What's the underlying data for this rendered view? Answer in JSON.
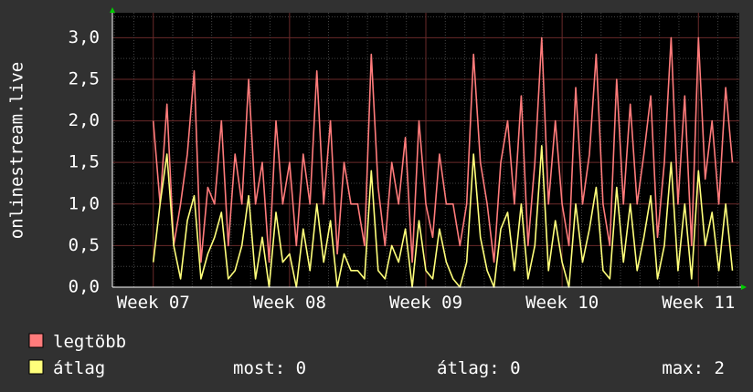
{
  "chart_data": {
    "type": "line",
    "ylabel": "onlinestream.live",
    "ylim": [
      0,
      3.3
    ],
    "yticks": [
      0,
      0.5,
      1.0,
      1.5,
      2.0,
      2.5,
      3.0
    ],
    "ytick_labels": [
      "0,0",
      "0,5",
      "1,0",
      "1,5",
      "2,0",
      "2,5",
      "3,0"
    ],
    "x": [
      0.0,
      0.05,
      0.1,
      0.15,
      0.2,
      0.25,
      0.3,
      0.35,
      0.4,
      0.45,
      0.5,
      0.55,
      0.6,
      0.65,
      0.7,
      0.75,
      0.8,
      0.85,
      0.9,
      0.95,
      1.0,
      1.05,
      1.1,
      1.15,
      1.2,
      1.25,
      1.3,
      1.35,
      1.4,
      1.45,
      1.5,
      1.55,
      1.6,
      1.65,
      1.7,
      1.75,
      1.8,
      1.85,
      1.9,
      1.95,
      2.0,
      2.05,
      2.1,
      2.15,
      2.2,
      2.25,
      2.3,
      2.35,
      2.4,
      2.45,
      2.5,
      2.55,
      2.6,
      2.65,
      2.7,
      2.75,
      2.8,
      2.85,
      2.9,
      2.95,
      3.0,
      3.05,
      3.1,
      3.15,
      3.2,
      3.25,
      3.3,
      3.35,
      3.4,
      3.45,
      3.5,
      3.55,
      3.6,
      3.65,
      3.7,
      3.75,
      3.8,
      3.85,
      3.9,
      3.95,
      4.0,
      4.05,
      4.1,
      4.15,
      4.2,
      4.25
    ],
    "xlim": [
      -0.3,
      4.3
    ],
    "xticks": [
      0,
      1,
      2,
      3,
      4
    ],
    "xtick_labels": [
      "Week 07",
      "Week 08",
      "Week 09",
      "Week 10",
      "Week 11"
    ],
    "series": [
      {
        "name": "legtöbb",
        "color": "#ff7b7b",
        "values": [
          2.0,
          1.0,
          2.2,
          0.5,
          1.0,
          1.6,
          2.6,
          0.3,
          1.2,
          1.0,
          2.0,
          0.5,
          1.6,
          1.0,
          2.5,
          1.0,
          1.5,
          0.3,
          2.0,
          1.0,
          1.5,
          0.5,
          1.6,
          1.0,
          2.6,
          1.0,
          2.0,
          0.4,
          1.5,
          1.0,
          1.0,
          0.5,
          2.8,
          1.2,
          0.5,
          1.5,
          1.0,
          1.8,
          0.3,
          2.0,
          1.0,
          0.6,
          1.6,
          1.0,
          1.0,
          0.5,
          1.0,
          2.8,
          1.5,
          1.0,
          0.3,
          1.5,
          2.0,
          1.0,
          2.3,
          0.5,
          1.5,
          3.0,
          1.0,
          2.0,
          1.0,
          0.5,
          2.4,
          1.0,
          1.6,
          2.8,
          1.0,
          0.5,
          2.5,
          1.0,
          2.2,
          1.0,
          1.6,
          2.3,
          0.6,
          1.5,
          3.0,
          1.0,
          2.3,
          0.5,
          3.0,
          1.3,
          2.0,
          1.0,
          2.4,
          1.5
        ]
      },
      {
        "name": "átlag",
        "color": "#ffff7b",
        "values": [
          0.3,
          1.0,
          1.6,
          0.5,
          0.1,
          0.8,
          1.1,
          0.1,
          0.4,
          0.6,
          0.9,
          0.1,
          0.2,
          0.5,
          1.1,
          0.1,
          0.6,
          0.0,
          0.9,
          0.3,
          0.4,
          0.0,
          0.7,
          0.2,
          1.0,
          0.3,
          0.8,
          0.0,
          0.4,
          0.2,
          0.2,
          0.1,
          1.4,
          0.2,
          0.1,
          0.5,
          0.3,
          0.7,
          0.0,
          0.8,
          0.2,
          0.1,
          0.7,
          0.3,
          0.1,
          0.0,
          0.3,
          1.6,
          0.6,
          0.2,
          0.0,
          0.7,
          0.9,
          0.2,
          1.0,
          0.1,
          0.5,
          1.7,
          0.2,
          0.8,
          0.3,
          0.0,
          1.0,
          0.3,
          0.7,
          1.2,
          0.2,
          0.1,
          1.2,
          0.3,
          1.0,
          0.2,
          0.6,
          1.1,
          0.1,
          0.5,
          1.5,
          0.2,
          1.0,
          0.1,
          1.4,
          0.5,
          0.9,
          0.2,
          1.0,
          0.2
        ]
      }
    ],
    "grid": true,
    "legend_position": "bottom-left"
  },
  "legend": {
    "items": [
      {
        "label": "legtöbb",
        "color": "#ff7b7b"
      },
      {
        "label": "átlag",
        "color": "#ffff7b"
      }
    ]
  },
  "stats": {
    "now": "most: 0",
    "avg": "átlag: 0",
    "max": "max: 2"
  }
}
